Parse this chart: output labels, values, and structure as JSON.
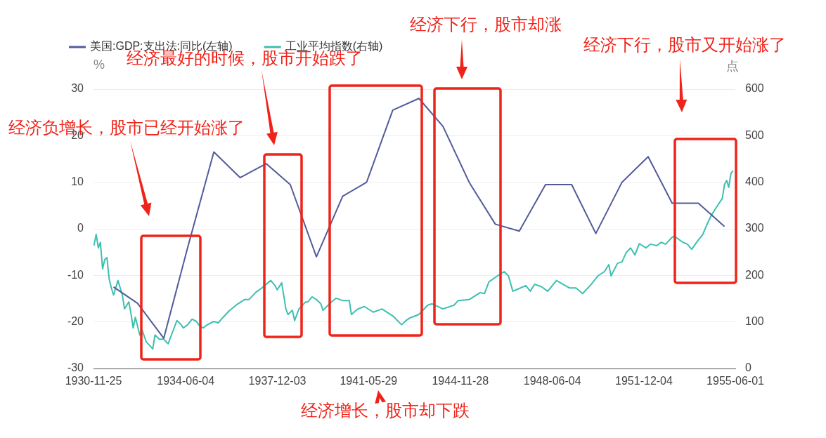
{
  "chart_data": {
    "type": "line",
    "ylabel": "%",
    "y2label": "点",
    "legend": "top left",
    "grid": "y",
    "marker": "none",
    "xlim": [
      "1930-11-25",
      "1955-06-01"
    ],
    "xticks": [
      "1930-11-25",
      "1934-06-04",
      "1937-12-03",
      "1941-05-29",
      "1944-11-28",
      "1948-06-04",
      "1951-12-04",
      "1955-06-01"
    ],
    "ylim": [
      -30,
      30
    ],
    "yticks": [
      -30,
      -20,
      -10,
      0,
      10,
      20,
      30
    ],
    "y2lim": [
      0,
      600
    ],
    "y2ticks": [
      0,
      100,
      200,
      300,
      400,
      500,
      600
    ],
    "series": [
      {
        "name": "美国:GDP:支出法:同比(左轴)",
        "color": "#515b9a",
        "x": [
          "1931-09",
          "1932-08",
          "1933-08",
          "1934-07",
          "1935-07",
          "1936-07",
          "1937-07",
          "1938-06",
          "1939-06",
          "1940-06",
          "1941-05",
          "1942-05",
          "1943-05",
          "1944-04",
          "1945-04",
          "1946-04",
          "1947-03",
          "1948-03",
          "1949-03",
          "1950-02",
          "1951-02",
          "1952-02",
          "1953-01",
          "1954-01",
          "1955-01"
        ],
        "values": [
          -12.5,
          -16,
          -23.5,
          -4,
          16.5,
          11,
          14,
          9.5,
          -6,
          7,
          10,
          25.5,
          28,
          22,
          10,
          1,
          -0.5,
          9.5,
          9.5,
          -1,
          10,
          15.5,
          5.5,
          5.5,
          0.5
        ]
      },
      {
        "name": "工业平均指数(右轴)",
        "color": "#3dbfb0",
        "axis": "y2",
        "x": [
          "1930-12",
          "1931-01",
          "1931-02",
          "1931-03",
          "1931-04",
          "1931-05",
          "1931-06",
          "1931-07",
          "1931-08",
          "1931-09",
          "1931-11",
          "1932-01",
          "1932-02",
          "1932-04",
          "1932-05",
          "1932-06",
          "1932-07",
          "1932-09",
          "1932-10",
          "1932-12",
          "1933-03",
          "1933-04",
          "1933-06",
          "1933-08",
          "1933-10",
          "1933-12",
          "1934-02",
          "1934-04",
          "1934-05",
          "1934-07",
          "1934-09",
          "1934-11",
          "1934-12",
          "1935-02",
          "1935-04",
          "1935-07",
          "1935-09",
          "1935-11",
          "1936-02",
          "1936-06",
          "1936-09",
          "1936-11",
          "1937-02",
          "1937-05",
          "1937-09",
          "1937-11",
          "1937-12",
          "1938-02",
          "1938-03",
          "1938-04",
          "1938-05",
          "1938-07",
          "1938-08",
          "1938-10",
          "1939-01",
          "1939-02",
          "1939-04",
          "1939-06",
          "1939-08",
          "1939-09",
          "1939-12",
          "1940-03",
          "1940-06",
          "1940-09",
          "1940-10",
          "1941-01",
          "1941-04",
          "1941-08",
          "1941-12",
          "1942-05",
          "1942-09",
          "1942-11",
          "1943-01",
          "1943-05",
          "1943-09",
          "1943-11",
          "1944-04",
          "1944-09",
          "1944-11",
          "1945-04",
          "1945-09",
          "1945-11",
          "1946-01",
          "1946-05",
          "1946-08",
          "1946-10",
          "1946-12",
          "1947-02",
          "1947-06",
          "1947-08",
          "1947-10",
          "1948-01",
          "1948-04",
          "1948-08",
          "1948-12",
          "1949-02",
          "1949-05",
          "1949-08",
          "1949-12",
          "1950-03",
          "1950-06",
          "1950-08",
          "1950-09",
          "1950-12",
          "1951-02",
          "1951-04",
          "1951-06",
          "1951-08",
          "1951-10",
          "1952-01",
          "1952-03",
          "1952-06",
          "1952-08",
          "1952-10",
          "1953-01",
          "1953-02",
          "1953-06",
          "1953-08",
          "1953-10",
          "1954-01",
          "1954-03",
          "1954-05",
          "1954-07",
          "1954-09",
          "1954-12",
          "1955-01",
          "1955-02",
          "1955-03",
          "1955-04",
          "1955-05"
        ],
        "values": [
          264,
          288,
          259,
          271,
          214,
          234,
          238,
          193,
          173,
          158,
          189,
          158,
          128,
          143,
          118,
          87,
          110,
          72,
          83,
          57,
          42,
          72,
          63,
          63,
          53,
          78,
          103,
          94,
          87,
          94,
          106,
          101,
          94,
          87,
          94,
          101,
          98,
          109,
          124,
          139,
          148,
          148,
          163,
          173,
          189,
          178,
          169,
          184,
          158,
          128,
          116,
          125,
          103,
          128,
          143,
          143,
          154,
          148,
          139,
          125,
          139,
          151,
          146,
          146,
          116,
          128,
          133,
          121,
          128,
          113,
          94,
          103,
          109,
          116,
          136,
          139,
          128,
          136,
          146,
          148,
          163,
          161,
          186,
          199,
          208,
          199,
          166,
          170,
          178,
          166,
          181,
          176,
          166,
          189,
          178,
          173,
          173,
          161,
          181,
          199,
          208,
          223,
          199,
          226,
          229,
          249,
          259,
          244,
          268,
          259,
          267,
          264,
          271,
          267,
          282,
          284,
          271,
          267,
          256,
          276,
          287,
          309,
          329,
          344,
          365,
          395,
          404,
          389,
          419,
          425
        ]
      }
    ],
    "annotations": [
      "经济负增长，股市已经开始涨了",
      "经济最好的时候，股市开始跌了",
      "经济下行，股市却涨",
      "经济下行，股市又开始涨了",
      "经济增长，股市却下跌"
    ]
  }
}
